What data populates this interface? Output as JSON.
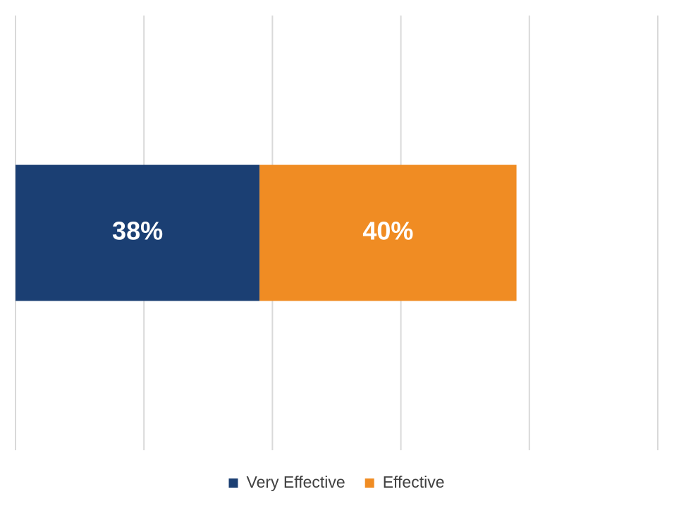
{
  "chart_data": {
    "type": "stacked-bar-horizontal",
    "categories": [
      null
    ],
    "series": [
      {
        "name": "Very Effective",
        "color": "#1b3f73",
        "values": [
          38
        ],
        "value_labels": [
          "38%"
        ]
      },
      {
        "name": "Effective",
        "color": "#f08c23",
        "values": [
          40
        ],
        "value_labels": [
          "40%"
        ]
      }
    ],
    "xlim": [
      0,
      100
    ],
    "xticks": [
      0,
      20,
      40,
      60,
      80,
      100
    ],
    "grid": true,
    "legend": "bottom"
  }
}
